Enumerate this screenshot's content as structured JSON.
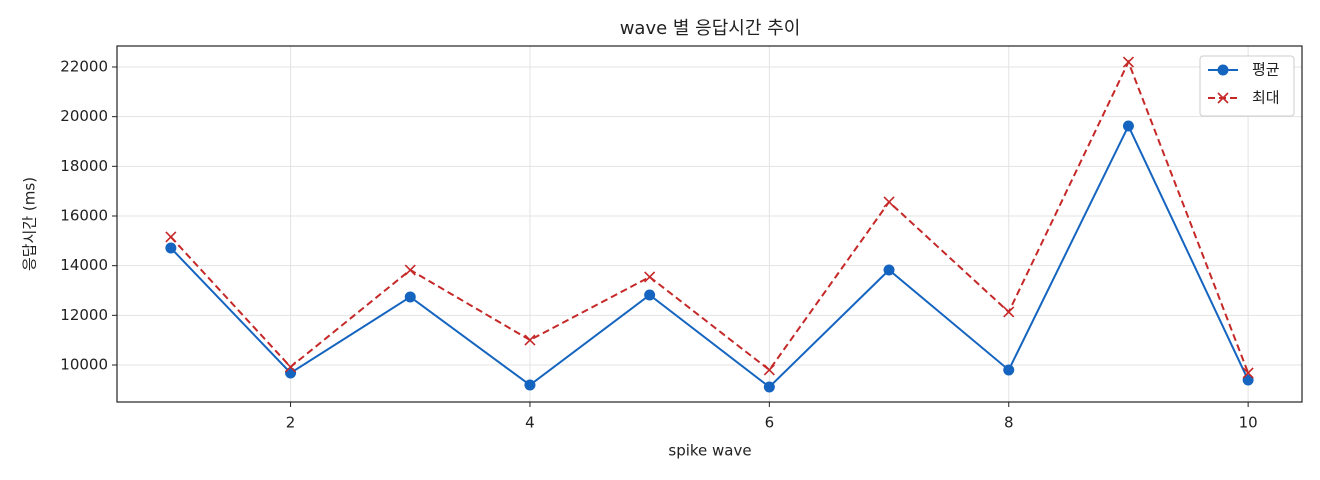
{
  "chart_data": {
    "type": "line",
    "title": "wave 별 응답시간 추이",
    "x_label": "spike wave",
    "y_label": "응답시간 (ms)",
    "x": [
      1,
      2,
      3,
      4,
      5,
      6,
      7,
      8,
      9,
      10
    ],
    "series": [
      {
        "name": "평균",
        "color": "#1565c0",
        "marker": "o",
        "linestyle": "solid",
        "values": [
          14710,
          9680,
          12740,
          9195,
          12820,
          9115,
          13825,
          9800,
          19625,
          9395
        ]
      },
      {
        "name": "최대",
        "color": "#c62828",
        "marker": "x",
        "linestyle": "dashed",
        "values": [
          15155,
          9920,
          13825,
          11005,
          13545,
          9800,
          16565,
          12135,
          22200,
          9680
        ]
      }
    ],
    "xlim": [
      0.55,
      10.45
    ],
    "ylim": [
      8510,
      22845
    ],
    "xticks": [
      2,
      4,
      6,
      8,
      10
    ],
    "yticks": [
      10000,
      12000,
      14000,
      16000,
      18000,
      20000,
      22000
    ],
    "grid": true,
    "legend": "upper-right"
  }
}
